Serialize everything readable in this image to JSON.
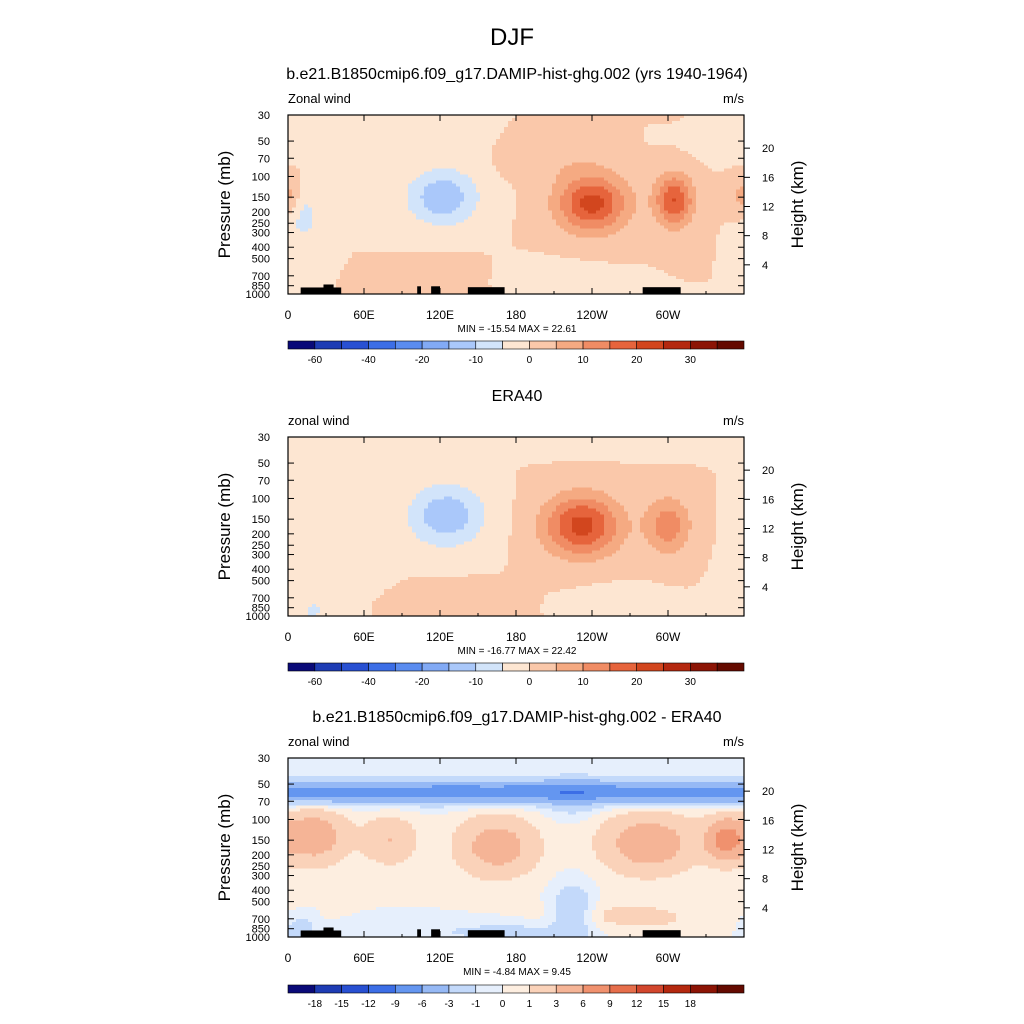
{
  "figure_title": "DJF",
  "colors": {
    "field_scale": [
      "#0a0a78",
      "#1e3cb4",
      "#2850d2",
      "#3c6ee6",
      "#5a8cf0",
      "#82aaf5",
      "#aac8fa",
      "#d2e4fa",
      "#fde6d2",
      "#fac8aa",
      "#f5aa82",
      "#f08c64",
      "#e6643c",
      "#d2461e",
      "#b4280f",
      "#8c1405",
      "#640a00"
    ],
    "diff_scale": [
      "#0a0a78",
      "#1e3cb4",
      "#2850d2",
      "#3c6ee6",
      "#6496f0",
      "#96b9f5",
      "#c3d9fa",
      "#e6effc",
      "#fdeee0",
      "#fad2b9",
      "#f5b496",
      "#f0916e",
      "#e66e4b",
      "#d2462d",
      "#b4280f",
      "#8c1405",
      "#640a00"
    ],
    "topo": "#000000"
  },
  "chart_data": [
    {
      "type": "heatmap",
      "title": "b.e21.B1850cmip6.f09_g17.DAMIP-hist-ghg.002 (yrs 1940-1964)",
      "left_string": "Zonal wind",
      "right_string": "m/s",
      "ylabel": "Pressure (mb)",
      "ylabel_right": "Height (km)",
      "x_ticks": [
        "0",
        "60E",
        "120E",
        "180",
        "120W",
        "60W"
      ],
      "y_ticks": [
        "30",
        "50",
        "70",
        "100",
        "150",
        "200",
        "250",
        "300",
        "400",
        "500",
        "700",
        "850",
        "1000"
      ],
      "y_right_ticks": [
        "20",
        "16",
        "12",
        "8",
        "4"
      ],
      "x_range": [
        0,
        360
      ],
      "y_range_mb": [
        1000,
        30
      ],
      "y_log": true,
      "min_max_text": "MIN = -15.54  MAX =  22.61",
      "min": -15.54,
      "max": 22.61,
      "colorbar_labels": [
        "-60",
        "-40",
        "-20",
        "-10",
        "0",
        "10",
        "20",
        "30"
      ],
      "colorbar_levels": [
        -70,
        -60,
        -50,
        -40,
        -30,
        -20,
        -15,
        -10,
        -5,
        0,
        5,
        10,
        15,
        20,
        25,
        30,
        35
      ],
      "features": [
        {
          "lon": 122,
          "p": 150,
          "dlon": 28,
          "dlnp": 0.55,
          "amp": -14
        },
        {
          "lon": 240,
          "p": 170,
          "dlon": 28,
          "dlnp": 0.55,
          "amp": 22
        },
        {
          "lon": 305,
          "p": 160,
          "dlon": 15,
          "dlnp": 0.5,
          "amp": 20
        },
        {
          "lon": 12,
          "p": 220,
          "dlon": 14,
          "dlnp": 0.55,
          "amp": -7
        },
        {
          "lon": 120,
          "p": 800,
          "dlon": 28,
          "dlnp": 0.35,
          "amp": 4.5
        },
        {
          "lon": 210,
          "p": 800,
          "dlon": 35,
          "dlnp": 0.3,
          "amp": -5
        },
        {
          "lon": 0,
          "p": 150,
          "dlon": 10,
          "dlnp": 0.4,
          "amp": 8
        },
        {
          "lon": 40,
          "p": 60,
          "dlon": 60,
          "dlnp": 0.25,
          "amp": -3
        },
        {
          "lon": 215,
          "p": 80,
          "dlon": 40,
          "dlnp": 0.3,
          "amp": 3
        }
      ],
      "topography": true
    },
    {
      "type": "heatmap",
      "title": "ERA40",
      "left_string": "zonal wind",
      "right_string": "m/s",
      "ylabel": "Pressure (mb)",
      "ylabel_right": "Height (km)",
      "x_ticks": [
        "0",
        "60E",
        "120E",
        "180",
        "120W",
        "60W"
      ],
      "y_ticks": [
        "30",
        "50",
        "70",
        "100",
        "150",
        "200",
        "250",
        "300",
        "400",
        "500",
        "700",
        "850",
        "1000"
      ],
      "y_right_ticks": [
        "20",
        "16",
        "12",
        "8",
        "4"
      ],
      "x_range": [
        0,
        360
      ],
      "y_range_mb": [
        1000,
        30
      ],
      "y_log": true,
      "min_max_text": "MIN = -16.77  MAX =  22.42",
      "min": -16.77,
      "max": 22.42,
      "colorbar_labels": [
        "-60",
        "-40",
        "-20",
        "-10",
        "0",
        "10",
        "20",
        "30"
      ],
      "colorbar_levels": [
        -70,
        -60,
        -50,
        -40,
        -30,
        -20,
        -15,
        -10,
        -5,
        0,
        5,
        10,
        15,
        20,
        25,
        30,
        35
      ],
      "features": [
        {
          "lon": 125,
          "p": 140,
          "dlon": 30,
          "dlnp": 0.6,
          "amp": -14
        },
        {
          "lon": 232,
          "p": 170,
          "dlon": 30,
          "dlnp": 0.6,
          "amp": 22
        },
        {
          "lon": 300,
          "p": 170,
          "dlon": 18,
          "dlnp": 0.55,
          "amp": 13
        },
        {
          "lon": 40,
          "p": 300,
          "dlon": 35,
          "dlnp": 0.9,
          "amp": -4
        },
        {
          "lon": 120,
          "p": 800,
          "dlon": 40,
          "dlnp": 0.35,
          "amp": 4
        },
        {
          "lon": 260,
          "p": 800,
          "dlon": 30,
          "dlnp": 0.3,
          "amp": -4
        },
        {
          "lon": 180,
          "p": 35,
          "dlon": 150,
          "dlnp": 0.2,
          "amp": -3
        },
        {
          "lon": 20,
          "p": 900,
          "dlon": 8,
          "dlnp": 0.2,
          "amp": -6
        }
      ],
      "topography": false
    },
    {
      "type": "heatmap",
      "title": "b.e21.B1850cmip6.f09_g17.DAMIP-hist-ghg.002 - ERA40",
      "left_string": "zonal wind",
      "right_string": "m/s",
      "ylabel": "Pressure (mb)",
      "ylabel_right": "Height (km)",
      "x_ticks": [
        "0",
        "60E",
        "120E",
        "180",
        "120W",
        "60W"
      ],
      "y_ticks": [
        "30",
        "50",
        "70",
        "100",
        "150",
        "200",
        "250",
        "300",
        "400",
        "500",
        "700",
        "850",
        "1000"
      ],
      "y_right_ticks": [
        "20",
        "16",
        "12",
        "8",
        "4"
      ],
      "x_range": [
        0,
        360
      ],
      "y_range_mb": [
        1000,
        30
      ],
      "y_log": true,
      "min_max_text": "MIN = -4.84  MAX =  9.45",
      "min": -4.84,
      "max": 9.45,
      "colorbar_labels": [
        "-18",
        "-15",
        "-12",
        "-9",
        "-6",
        "-3",
        "-1",
        "0",
        "1",
        "3",
        "6",
        "9",
        "12",
        "15",
        "18"
      ],
      "colorbar_levels": [
        -21,
        -18,
        -15,
        -12,
        -9,
        -6,
        -3,
        -1,
        0,
        1,
        3,
        6,
        9,
        12,
        15,
        18,
        21
      ],
      "features": [
        {
          "lon": 180,
          "p": 58,
          "dlon": 400,
          "dlnp": 0.22,
          "amp": -4
        },
        {
          "lon": 225,
          "p": 65,
          "dlon": 20,
          "dlnp": 0.35,
          "amp": -2
        },
        {
          "lon": 225,
          "p": 600,
          "dlon": 15,
          "dlnp": 0.5,
          "amp": -3
        },
        {
          "lon": 20,
          "p": 140,
          "dlon": 25,
          "dlnp": 0.5,
          "amp": 5
        },
        {
          "lon": 80,
          "p": 150,
          "dlon": 20,
          "dlnp": 0.45,
          "amp": 3
        },
        {
          "lon": 165,
          "p": 170,
          "dlon": 30,
          "dlnp": 0.55,
          "amp": 4.5
        },
        {
          "lon": 285,
          "p": 160,
          "dlon": 35,
          "dlnp": 0.55,
          "amp": 5
        },
        {
          "lon": 345,
          "p": 150,
          "dlon": 15,
          "dlnp": 0.4,
          "amp": 7
        },
        {
          "lon": 270,
          "p": 700,
          "dlon": 60,
          "dlnp": 0.35,
          "amp": 1.5
        },
        {
          "lon": 10,
          "p": 900,
          "dlon": 10,
          "dlnp": 0.25,
          "amp": -3
        },
        {
          "lon": 180,
          "p": 900,
          "dlon": 80,
          "dlnp": 0.2,
          "amp": -1.5
        }
      ],
      "topography": true
    }
  ]
}
